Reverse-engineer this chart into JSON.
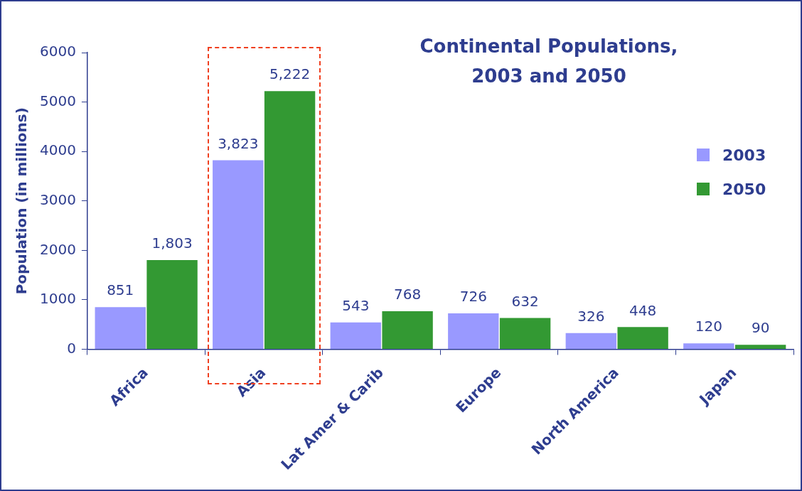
{
  "chart_data": {
    "type": "bar",
    "title": "Continental Populations, 2003 and 2050",
    "ylabel": "Population (in millions)",
    "categories": [
      "Africa",
      "Asia",
      "Lat Amer & Carib",
      "Europe",
      "North America",
      "Japan"
    ],
    "series": [
      {
        "name": "2003",
        "color": "#9999ff",
        "values": [
          851,
          3823,
          543,
          726,
          326,
          120
        ],
        "value_labels": [
          "851",
          "3,823",
          "543",
          "726",
          "326",
          "120"
        ]
      },
      {
        "name": "2050",
        "color": "#339933",
        "values": [
          1803,
          5222,
          768,
          632,
          448,
          90
        ],
        "value_labels": [
          "1,803",
          "5,222",
          "768",
          "632",
          "448",
          "90"
        ]
      }
    ],
    "ylim": [
      0,
      6000
    ],
    "yticks": [
      0,
      1000,
      2000,
      3000,
      4000,
      5000,
      6000
    ],
    "grid": false,
    "legend": "right"
  }
}
